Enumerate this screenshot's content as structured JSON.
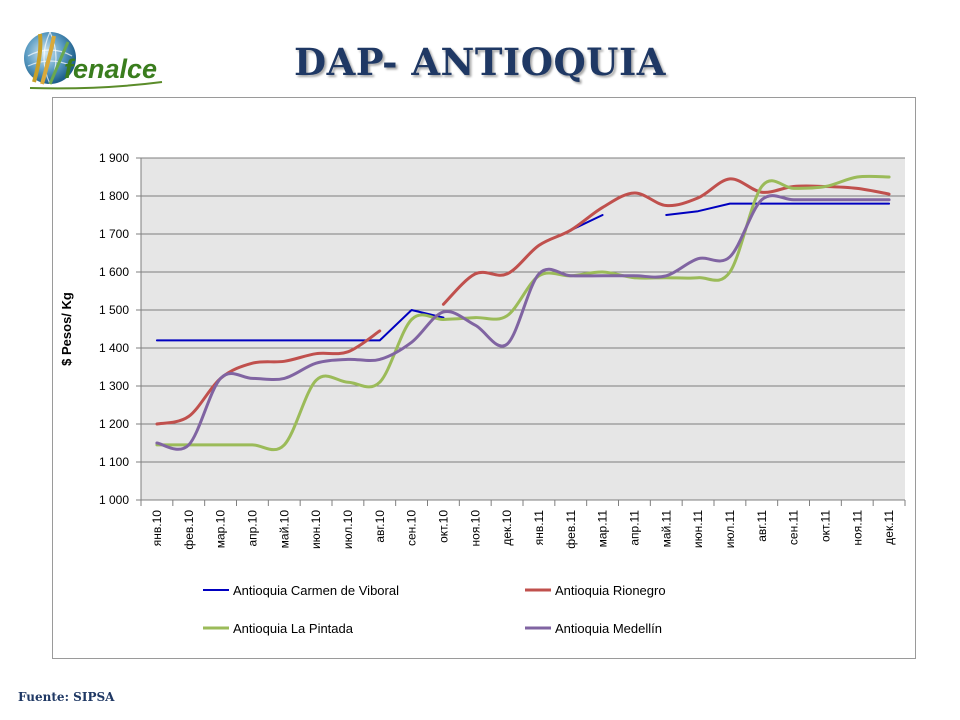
{
  "header": {
    "title": "DAP- ANTIOQUIA",
    "logo_text": "fenalce"
  },
  "footer": {
    "source": "Fuente: SIPSA"
  },
  "colors": {
    "title": "#1f3864",
    "plot_bg": "#e6e6e6",
    "grid": "#7f7f7f"
  },
  "chart_data": {
    "type": "line",
    "title": "",
    "xlabel": "",
    "ylabel": "$ Pesos/ Kg",
    "ylim": [
      1000,
      1900
    ],
    "yticks": [
      1000,
      1100,
      1200,
      1300,
      1400,
      1500,
      1600,
      1700,
      1800,
      1900
    ],
    "ytick_labels": [
      "1 000",
      "1 100",
      "1 200",
      "1 300",
      "1 400",
      "1 500",
      "1 600",
      "1 700",
      "1 800",
      "1 900"
    ],
    "grid": true,
    "legend_position": "bottom",
    "categories": [
      "янв.10",
      "фев.10",
      "мар.10",
      "апр.10",
      "май.10",
      "июн.10",
      "июл.10",
      "авг.10",
      "сен.10",
      "окт.10",
      "ноя.10",
      "дек.10",
      "янв.11",
      "фев.11",
      "мар.11",
      "апр.11",
      "май.11",
      "июн.11",
      "июл.11",
      "авг.11",
      "сен.11",
      "окт.11",
      "ноя.11",
      "дек.11"
    ],
    "series": [
      {
        "name": "Antioquia Carmen de Viboral",
        "color": "#0000c0",
        "smooth": false,
        "values": [
          1420,
          1420,
          1420,
          1420,
          1420,
          1420,
          1420,
          1420,
          1500,
          1480,
          null,
          null,
          null,
          1710,
          1750,
          null,
          1750,
          1760,
          1780,
          1780,
          1780,
          1780,
          1780,
          1780
        ]
      },
      {
        "name": "Antioquia Rionegro",
        "color": "#c0504d",
        "smooth": true,
        "values": [
          1200,
          1220,
          1320,
          1360,
          1365,
          1385,
          1390,
          1445,
          null,
          1515,
          1595,
          1595,
          1670,
          1710,
          1770,
          1808,
          1775,
          1795,
          1845,
          1810,
          1825,
          1825,
          1820,
          1805
        ]
      },
      {
        "name": "Antioquia La Pintada",
        "color": "#9bbb59",
        "smooth": true,
        "values": [
          1145,
          1145,
          1145,
          1145,
          1145,
          1315,
          1310,
          1310,
          1475,
          1475,
          1480,
          1485,
          1590,
          1590,
          1600,
          1585,
          1585,
          1585,
          1600,
          1825,
          1820,
          1825,
          1850,
          1850
        ]
      },
      {
        "name": "Antioquia Medellín",
        "color": "#8064a2",
        "smooth": true,
        "values": [
          1150,
          1145,
          1320,
          1320,
          1320,
          1360,
          1370,
          1370,
          1415,
          1495,
          1460,
          1410,
          1595,
          1590,
          1590,
          1590,
          1590,
          1635,
          1640,
          1790,
          1790,
          1790,
          1790,
          1790
        ]
      }
    ]
  }
}
